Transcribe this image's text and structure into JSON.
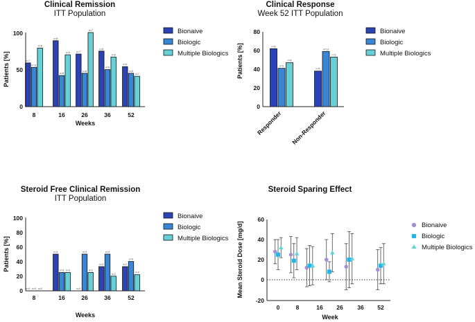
{
  "colors": {
    "bionaive": "#2b43b4",
    "biologic": "#3a86d6",
    "multiple": "#67cfd6",
    "dot_bionaive": "#a58fd4",
    "dot_biologic": "#1fb7ea",
    "dot_multiple": "#5fd6d3",
    "errorbar": "#444444"
  },
  "chart_data": [
    {
      "type": "bar",
      "title": "Clinical Remission",
      "subtitle": "ITT Population",
      "xlabel": "Weeks",
      "ylabel": "Patients [%]",
      "ylim": [
        0,
        100
      ],
      "yticks": [
        "0",
        "50",
        "100"
      ],
      "categories": [
        "8",
        "16",
        "26",
        "36",
        "52"
      ],
      "series": [
        {
          "name": "Bionaive",
          "values": [
            59,
            89,
            71,
            75,
            54
          ],
          "n": [
            "n=7",
            "n=8",
            "n=7",
            "n=8",
            "n=6"
          ]
        },
        {
          "name": "Biologic",
          "values": [
            53,
            42,
            45,
            50,
            45
          ],
          "n": [
            "n=11",
            "n=8",
            "n=8",
            "n=6",
            "n=5"
          ]
        },
        {
          "name": "Multiple Biologics",
          "values": [
            79,
            70,
            100,
            67,
            41
          ],
          "n": [
            "n=8",
            "n=6",
            "n=7",
            "n=6",
            "n=7"
          ]
        }
      ],
      "legend": [
        "Bionaive",
        "Biologic",
        "Multiple Biologics"
      ]
    },
    {
      "type": "bar",
      "title": "Clinical Response",
      "subtitle": "Week 52 ITT Population",
      "xlabel": "",
      "ylabel": "Patients [%]",
      "ylim": [
        0,
        80
      ],
      "yticks": [
        "0",
        "20",
        "40",
        "60",
        "80"
      ],
      "categories": [
        "Responder",
        "Non-Responder"
      ],
      "series": [
        {
          "name": "Bionaive",
          "values": [
            62,
            38
          ],
          "n": [
            "n=8",
            "n=5"
          ]
        },
        {
          "name": "Biologic",
          "values": [
            41,
            59
          ],
          "n": [
            "n=9",
            "n=13"
          ]
        },
        {
          "name": "Multiple Biologics",
          "values": [
            47,
            53
          ],
          "n": [
            "n=8",
            "n=9"
          ]
        }
      ],
      "legend": [
        "Bionaive",
        "Biologic",
        "Multiple Biologics"
      ]
    },
    {
      "type": "bar",
      "title": "Steroid Free Clinical Remission",
      "subtitle": "ITT Population",
      "xlabel": "Weeks",
      "ylabel": "Patients [%]",
      "ylim": [
        0,
        100
      ],
      "yticks": [
        "0",
        "20",
        "40",
        "60",
        "80",
        "100"
      ],
      "categories": [
        "8",
        "16",
        "26",
        "36",
        "52"
      ],
      "series": [
        {
          "name": "Bionaive",
          "values": [
            0,
            50,
            0,
            33,
            33
          ],
          "n": [
            "n=0",
            "n=3",
            "n=0",
            "n=3",
            "n=2"
          ]
        },
        {
          "name": "Biologic",
          "values": [
            0,
            25,
            50,
            50,
            40
          ],
          "n": [
            "n=0",
            "n=3",
            "n=3",
            "n=3",
            "n=4"
          ]
        },
        {
          "name": "Multiple Biologics",
          "values": [
            0,
            25,
            25,
            20,
            22
          ],
          "n": [
            "n=0",
            "n=3",
            "n=3",
            "n=2",
            "n=2"
          ]
        }
      ],
      "legend": [
        "Bionaive",
        "Biologic",
        "Multiple Biologics"
      ]
    },
    {
      "type": "scatter",
      "title": "Steroid Sparing Effect",
      "xlabel": "Week",
      "ylabel": "Mean Steroid Dose [mg/d]",
      "ylim": [
        -20,
        60
      ],
      "yticks": [
        "-20",
        "0",
        "20",
        "40",
        "60"
      ],
      "xlim": [
        -5,
        57
      ],
      "xticks": [
        "0",
        "8",
        "16",
        "26",
        "36",
        "52"
      ],
      "reference_line_y": 0,
      "series": [
        {
          "name": "Bionaive",
          "marker": "circle",
          "x": [
            -1.5,
            6.5,
            14.5,
            24.5,
            34.5,
            50.5
          ],
          "y": [
            28,
            25,
            12,
            20,
            13,
            10
          ],
          "err": [
            12,
            18,
            19,
            20,
            23,
            20
          ]
        },
        {
          "name": "Biologic",
          "marker": "square",
          "x": [
            0,
            8,
            16,
            26,
            36,
            52
          ],
          "y": [
            25,
            19,
            14,
            8,
            20,
            14
          ],
          "err": [
            15,
            17,
            20,
            10,
            28,
            18
          ]
        },
        {
          "name": "Multiple Biologics",
          "marker": "triangle",
          "x": [
            1.5,
            9.5,
            17.5,
            27.5,
            37.5,
            53.5
          ],
          "y": [
            32,
            26,
            14,
            27,
            21,
            16
          ],
          "err": [
            10,
            16,
            19,
            19,
            25,
            20
          ]
        }
      ],
      "legend": [
        "Bionaive",
        "Biologic",
        "Multiple Biologics"
      ]
    }
  ]
}
